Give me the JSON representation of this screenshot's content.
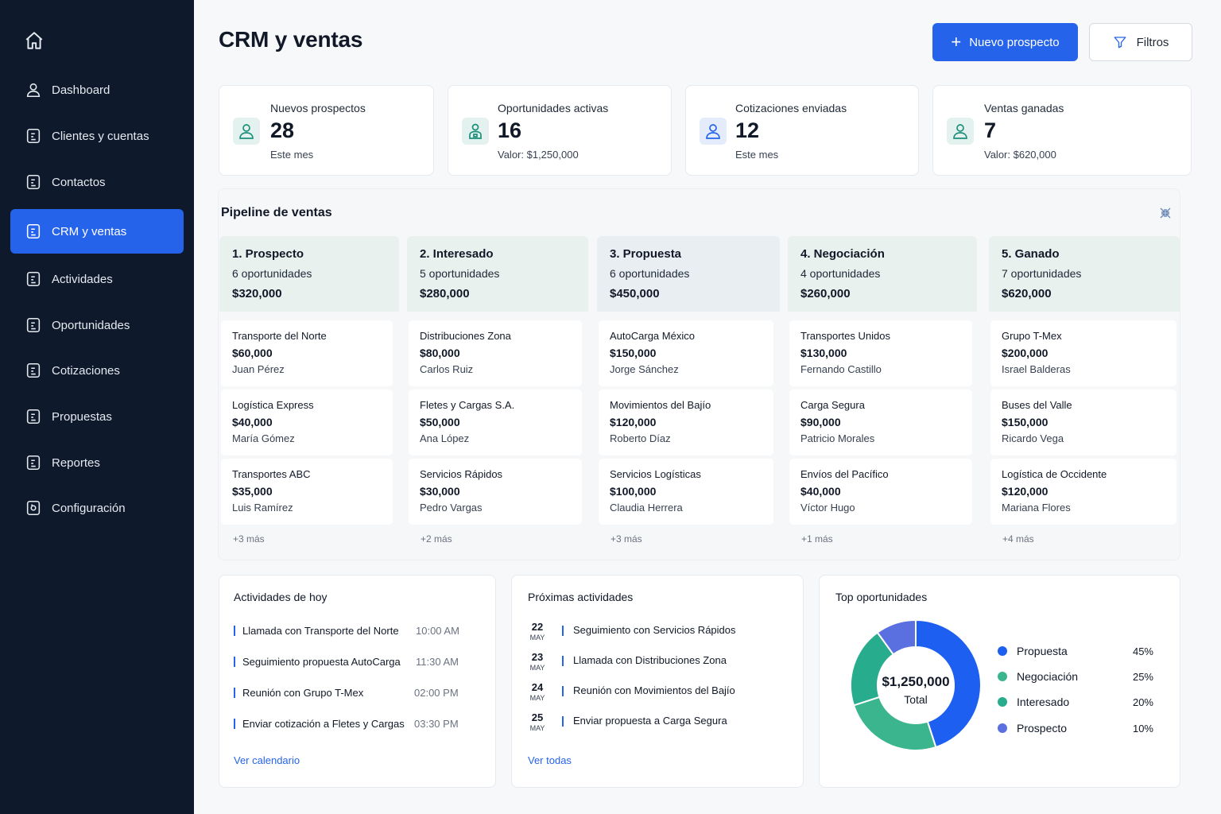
{
  "sidebar": {
    "items": [
      {
        "label": "Dashboard",
        "icon": "user-icon"
      },
      {
        "label": "Clientes y cuentas",
        "icon": "document-icon"
      },
      {
        "label": "Contactos",
        "icon": "document-icon"
      },
      {
        "label": "CRM y ventas",
        "icon": "document-icon",
        "active": true
      },
      {
        "label": "Actividades",
        "icon": "document-icon"
      },
      {
        "label": "Oportunidades",
        "icon": "document-icon"
      },
      {
        "label": "Cotizaciones",
        "icon": "document-icon"
      },
      {
        "label": "Propuestas",
        "icon": "document-icon"
      },
      {
        "label": "Reportes",
        "icon": "document-icon"
      },
      {
        "label": "Configuración",
        "icon": "gear-document-icon"
      }
    ]
  },
  "header": {
    "title": "CRM y ventas",
    "primary_button": "Nuevo prospecto",
    "filter_button": "Filtros"
  },
  "kpis": [
    {
      "label": "Nuevos prospectos",
      "value": "28",
      "sub": "Este mes",
      "icon": "user-icon"
    },
    {
      "label": "Oportunidades activas",
      "value": "16",
      "sub": "Valor: $1,250,000",
      "icon": "user-badge-icon"
    },
    {
      "label": "Cotizaciones enviadas",
      "value": "12",
      "sub": "Este mes",
      "icon": "user-icon"
    },
    {
      "label": "Ventas ganadas",
      "value": "7",
      "sub": "Valor: $620,000",
      "icon": "user-icon"
    }
  ],
  "pipeline": {
    "title": "Pipeline de ventas",
    "stages": [
      {
        "name": "1. Prospecto",
        "count": "6 oportunidades",
        "total": "$320,000",
        "more": "+3 más",
        "deals": [
          {
            "name": "Transporte del Norte",
            "amount": "$60,000",
            "owner": "Juan Pérez"
          },
          {
            "name": "Logística Express",
            "amount": "$40,000",
            "owner": "María Gómez"
          },
          {
            "name": "Transportes ABC",
            "amount": "$35,000",
            "owner": "Luis Ramírez"
          }
        ]
      },
      {
        "name": "2. Interesado",
        "count": "5 oportunidades",
        "total": "$280,000",
        "more": "+2 más",
        "deals": [
          {
            "name": "Distribuciones Zona",
            "amount": "$80,000",
            "owner": "Carlos Ruiz"
          },
          {
            "name": "Fletes y Cargas S.A.",
            "amount": "$50,000",
            "owner": "Ana López"
          },
          {
            "name": "Servicios Rápidos",
            "amount": "$30,000",
            "owner": "Pedro Vargas"
          }
        ]
      },
      {
        "name": "3. Propuesta",
        "count": "6 oportunidades",
        "total": "$450,000",
        "more": "+3 más",
        "deals": [
          {
            "name": "AutoCarga México",
            "amount": "$150,000",
            "owner": "Jorge Sánchez"
          },
          {
            "name": "Movimientos del Bajío",
            "amount": "$120,000",
            "owner": "Roberto Díaz"
          },
          {
            "name": "Servicios Logísticas",
            "amount": "$100,000",
            "owner": "Claudia Herrera"
          }
        ]
      },
      {
        "name": "4. Negociación",
        "count": "4 oportunidades",
        "total": "$260,000",
        "more": "+1 más",
        "deals": [
          {
            "name": "Transportes Unidos",
            "amount": "$130,000",
            "owner": "Fernando Castillo"
          },
          {
            "name": "Carga Segura",
            "amount": "$90,000",
            "owner": "Patricio Morales"
          },
          {
            "name": "Envíos del Pacífico",
            "amount": "$40,000",
            "owner": "Víctor Hugo"
          }
        ]
      },
      {
        "name": "5. Ganado",
        "count": "7 oportunidades",
        "total": "$620,000",
        "more": "+4 más",
        "deals": [
          {
            "name": "Grupo T-Mex",
            "amount": "$200,000",
            "owner": "Israel Balderas"
          },
          {
            "name": "Buses del Valle",
            "amount": "$150,000",
            "owner": "Ricardo Vega"
          },
          {
            "name": "Logística de Occidente",
            "amount": "$120,000",
            "owner": "Mariana Flores"
          }
        ]
      }
    ]
  },
  "today": {
    "title": "Actividades de hoy",
    "items": [
      {
        "text": "Llamada con Transporte del Norte",
        "time": "10:00 AM"
      },
      {
        "text": "Seguimiento propuesta AutoCarga",
        "time": "11:30 AM"
      },
      {
        "text": "Reunión con Grupo T-Mex",
        "time": "02:00 PM"
      },
      {
        "text": "Enviar cotización a Fletes y Cargas",
        "time": "03:30 PM"
      }
    ],
    "link": "Ver calendario"
  },
  "upcoming": {
    "title": "Próximas actividades",
    "items": [
      {
        "day": "22",
        "month": "MAY",
        "text": "Seguimiento con Servicios Rápidos"
      },
      {
        "day": "23",
        "month": "MAY",
        "text": "Llamada con Distribuciones Zona"
      },
      {
        "day": "24",
        "month": "MAY",
        "text": "Reunión con Movimientos del Bajío"
      },
      {
        "day": "25",
        "month": "MAY",
        "text": "Enviar propuesta a Carga Segura"
      }
    ],
    "link": "Ver todas"
  },
  "top": {
    "title": "Top oportunidades",
    "center_value": "$1,250,000",
    "center_label": "Total",
    "legend": [
      {
        "name": "Propuesta",
        "pct": "45%",
        "value": 45,
        "color": "#1d5ff0"
      },
      {
        "name": "Negociación",
        "pct": "25%",
        "value": 25,
        "color": "#3bb58e"
      },
      {
        "name": "Interesado",
        "pct": "20%",
        "value": 20,
        "color": "#27ad8d"
      },
      {
        "name": "Prospecto",
        "pct": "10%",
        "value": 10,
        "color": "#5a6fe0"
      }
    ]
  }
}
